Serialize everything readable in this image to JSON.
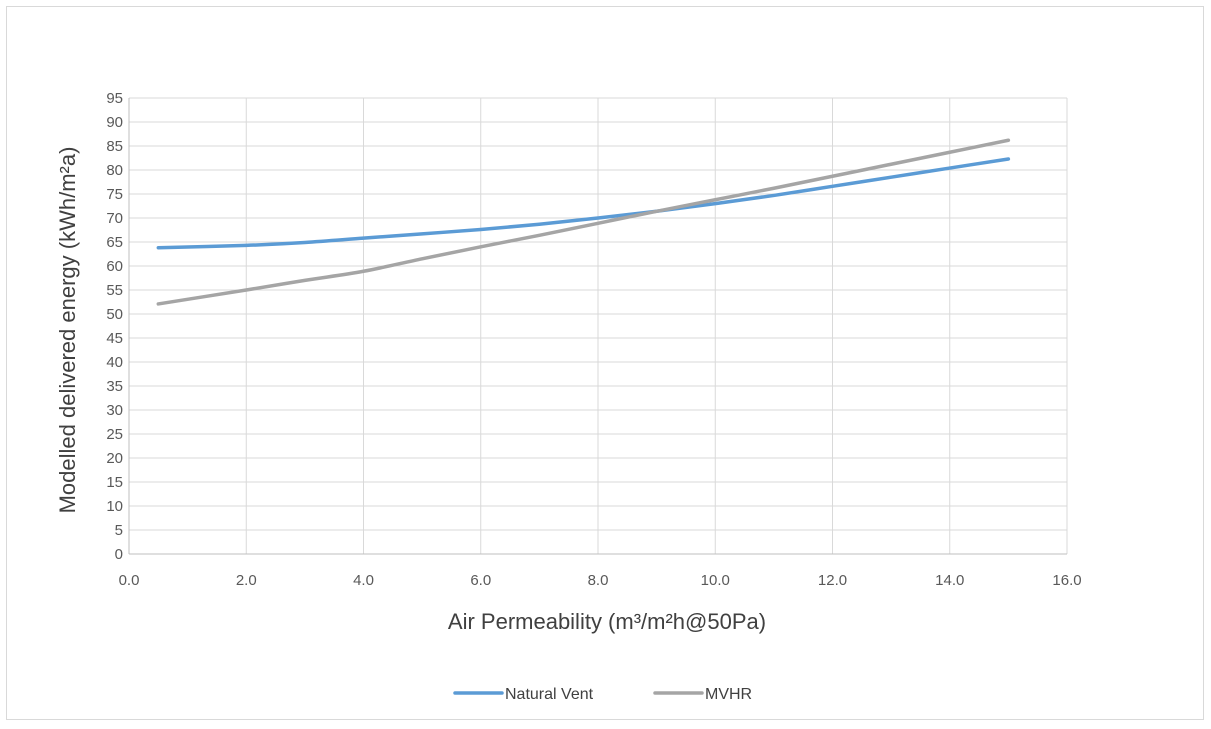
{
  "chart_data": {
    "type": "line",
    "title": "",
    "xlabel": "Air Permeability (m³/m²h@50Pa)",
    "ylabel": "Modelled delivered energy (kWh/m²a)",
    "xlim": [
      0,
      16
    ],
    "ylim": [
      0,
      95
    ],
    "x_ticks": [
      "0.0",
      "2.0",
      "4.0",
      "6.0",
      "8.0",
      "10.0",
      "12.0",
      "14.0",
      "16.0"
    ],
    "y_ticks": [
      "0",
      "5",
      "10",
      "15",
      "20",
      "25",
      "30",
      "35",
      "40",
      "45",
      "50",
      "55",
      "60",
      "65",
      "70",
      "75",
      "80",
      "85",
      "90",
      "95"
    ],
    "grid": true,
    "legend_position": "bottom",
    "series": [
      {
        "name": "Natural Vent",
        "color": "#5b9bd5",
        "points": [
          [
            0.5,
            63.8
          ],
          [
            2.0,
            64.3
          ],
          [
            3.0,
            64.9
          ],
          [
            4.0,
            65.8
          ],
          [
            5.0,
            66.7
          ],
          [
            6.0,
            67.6
          ],
          [
            7.0,
            68.7
          ],
          [
            8.0,
            70.0
          ],
          [
            9.0,
            71.4
          ],
          [
            10.0,
            73.0
          ],
          [
            11.0,
            74.7
          ],
          [
            12.0,
            76.6
          ],
          [
            13.0,
            78.5
          ],
          [
            14.0,
            80.4
          ],
          [
            15.0,
            82.3
          ]
        ]
      },
      {
        "name": "MVHR",
        "color": "#a5a5a5",
        "points": [
          [
            0.5,
            52.1
          ],
          [
            2.0,
            55.0
          ],
          [
            3.0,
            57.0
          ],
          [
            4.0,
            58.9
          ],
          [
            5.0,
            61.5
          ],
          [
            6.0,
            64.0
          ],
          [
            7.0,
            66.4
          ],
          [
            8.0,
            68.9
          ],
          [
            9.0,
            71.4
          ],
          [
            10.0,
            73.8
          ],
          [
            11.0,
            76.2
          ],
          [
            12.0,
            78.7
          ],
          [
            13.0,
            81.2
          ],
          [
            14.0,
            83.7
          ],
          [
            15.0,
            86.2
          ]
        ]
      }
    ]
  }
}
